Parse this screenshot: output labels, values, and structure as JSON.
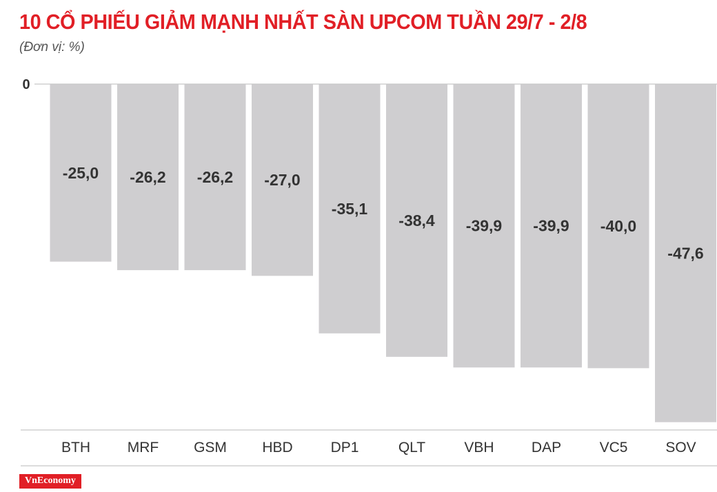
{
  "header": {
    "title": "10 CỔ PHIẾU GIẢM MẠNH NHẤT SÀN UPCOM TUẦN 29/7 - 2/8",
    "unit": "(Đơn vị: %)"
  },
  "footer": {
    "brand": "VnEconomy"
  },
  "colors": {
    "bar": "#cfced0",
    "title": "#e11f26",
    "axis": "#c8c8c8",
    "label": "#333333"
  },
  "chart_data": {
    "type": "bar",
    "title": "10 CỔ PHIẾU GIẢM MẠNH NHẤT SÀN UPCOM TUẦN 29/7 - 2/8",
    "ylabel": "(Đơn vị: %)",
    "categories": [
      "BTH",
      "MRF",
      "GSM",
      "HBD",
      "DP1",
      "QLT",
      "VBH",
      "DAP",
      "VC5",
      "SOV"
    ],
    "values": [
      -25.0,
      -26.2,
      -26.2,
      -27.0,
      -35.1,
      -38.4,
      -39.9,
      -39.9,
      -40.0,
      -47.6
    ],
    "data_labels": [
      "-25,0",
      "-26,2",
      "-26,2",
      "-27,0",
      "-35,1",
      "-38,4",
      "-39,9",
      "-39,9",
      "-40,0",
      "-47,6"
    ],
    "y_ticks": [
      {
        "value": 0,
        "label": "0"
      }
    ],
    "ylim": [
      -48.7,
      0
    ],
    "grid": false,
    "legend": "none"
  }
}
